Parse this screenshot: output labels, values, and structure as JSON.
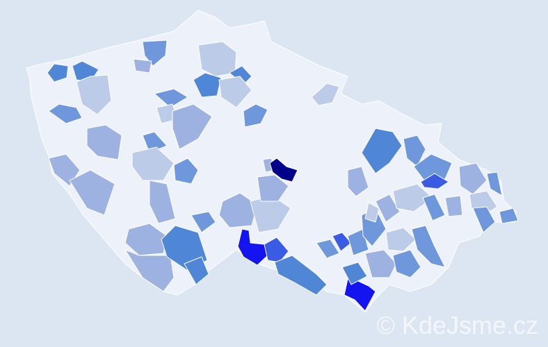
{
  "watermark": "© KdeJsme.cz",
  "colors": {
    "background": "#dce6f3",
    "base": "#edf1f9",
    "level1": "#bccbe8",
    "level2": "#9db2e0",
    "level3": "#6f97dc",
    "level4": "#4f86d6",
    "level5": "#3a5ce4",
    "level6": "#1414f0",
    "level7": "#00008b"
  }
}
